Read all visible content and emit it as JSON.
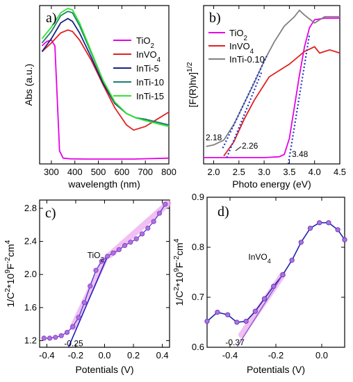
{
  "chart_data": [
    {
      "panel": "a)",
      "type": "line",
      "xlabel": "wavelength (nm)",
      "ylabel": "Abs (a.u.)",
      "xlim": [
        250,
        800
      ],
      "ylim": [
        0,
        1.1
      ],
      "xticks": [
        "300",
        "400",
        "500",
        "600",
        "700",
        "800"
      ],
      "yticks_shown": false,
      "legend": "top-right",
      "series": [
        {
          "name": "TiO2",
          "color": "#e600e6",
          "x": [
            260,
            280,
            300,
            315,
            325,
            335,
            350,
            380,
            450,
            550,
            650,
            800
          ],
          "y": [
            0.82,
            0.85,
            0.86,
            0.82,
            0.45,
            0.09,
            0.04,
            0.035,
            0.034,
            0.034,
            0.034,
            0.04
          ]
        },
        {
          "name": "InVO4",
          "color": "#e02020",
          "x": [
            260,
            300,
            340,
            370,
            390,
            420,
            470,
            520,
            570,
            620,
            650,
            700,
            750,
            800
          ],
          "y": [
            0.78,
            0.84,
            0.91,
            0.93,
            0.92,
            0.86,
            0.72,
            0.55,
            0.39,
            0.27,
            0.235,
            0.26,
            0.31,
            0.36
          ]
        },
        {
          "name": "InTi-5",
          "color": "#1a237e",
          "x": [
            260,
            300,
            340,
            370,
            390,
            420,
            470,
            520,
            570,
            620,
            660,
            700,
            750,
            800
          ],
          "y": [
            0.78,
            0.87,
            0.98,
            1.01,
            0.99,
            0.91,
            0.74,
            0.56,
            0.42,
            0.35,
            0.32,
            0.31,
            0.29,
            0.27
          ]
        },
        {
          "name": "InTi-10",
          "color": "#1a7f6e",
          "x": [
            260,
            300,
            340,
            370,
            390,
            420,
            470,
            520,
            570,
            620,
            660,
            700,
            750,
            800
          ],
          "y": [
            0.84,
            0.92,
            1.03,
            1.06,
            1.05,
            0.96,
            0.77,
            0.58,
            0.43,
            0.35,
            0.32,
            0.31,
            0.29,
            0.27
          ]
        },
        {
          "name": "InTi-15",
          "color": "#2ee62e",
          "x": [
            260,
            300,
            340,
            370,
            390,
            420,
            470,
            520,
            570,
            620,
            660,
            700,
            750,
            800
          ],
          "y": [
            0.87,
            0.95,
            1.05,
            1.08,
            1.07,
            0.98,
            0.78,
            0.58,
            0.43,
            0.35,
            0.32,
            0.3,
            0.28,
            0.26
          ]
        }
      ]
    },
    {
      "panel": "b)",
      "type": "line",
      "xlabel": "Photo energy (eV)",
      "ylabel": "[F(R)hv]1/2",
      "xlim": [
        1.8,
        4.5
      ],
      "ylim": [
        0,
        1.0
      ],
      "xticks": [
        "2.0",
        "2.5",
        "3.0",
        "3.5",
        "4.0",
        "4.5"
      ],
      "yticks_shown": false,
      "legend": "top-left",
      "series": [
        {
          "name": "TiO2",
          "color": "#e600e6",
          "x": [
            1.8,
            3.0,
            3.3,
            3.4,
            3.5,
            3.6,
            3.7,
            3.8,
            3.9,
            4.0,
            4.2,
            4.5
          ],
          "y": [
            0.04,
            0.04,
            0.045,
            0.06,
            0.16,
            0.36,
            0.56,
            0.74,
            0.86,
            0.91,
            0.92,
            0.92
          ]
        },
        {
          "name": "InVO4",
          "color": "#e02020",
          "x": [
            2.2,
            2.4,
            2.6,
            2.8,
            3.0,
            3.1,
            3.3,
            3.5,
            3.8,
            4.0,
            4.1,
            4.3,
            4.5
          ],
          "y": [
            0.05,
            0.14,
            0.28,
            0.4,
            0.5,
            0.55,
            0.59,
            0.63,
            0.71,
            0.74,
            0.7,
            0.72,
            0.7
          ]
        },
        {
          "name": "InTi-0.10",
          "color": "#808080",
          "x": [
            1.85,
            2.0,
            2.2,
            2.4,
            2.6,
            2.8,
            3.0,
            3.2,
            3.4,
            3.6,
            3.7,
            3.8,
            4.0,
            4.2,
            4.5
          ],
          "y": [
            0.11,
            0.12,
            0.15,
            0.25,
            0.38,
            0.51,
            0.65,
            0.77,
            0.87,
            0.93,
            0.97,
            0.94,
            0.89,
            0.93,
            0.93
          ]
        }
      ],
      "annotations": [
        {
          "text": "2.18",
          "x": 2.18,
          "y": 0.1
        },
        {
          "text": "2.26",
          "x": 2.26,
          "y": 0.04
        },
        {
          "text": "3.48",
          "x": 3.48,
          "y": 0.0
        }
      ]
    },
    {
      "panel": "c)",
      "type": "scatter",
      "xlabel": "Potentials (V)",
      "ylabel": "1/C2*109F-2cm4",
      "xlim": [
        -0.45,
        0.45
      ],
      "ylim": [
        1.12,
        2.9
      ],
      "xticks": [
        "-0.4",
        "-0.2",
        "0.0",
        "0.2",
        "0.4"
      ],
      "yticks": [
        "1.2",
        "1.6",
        "2.0",
        "2.4",
        "2.8"
      ],
      "series": [
        {
          "name": "TiO2",
          "color": "#3333cc",
          "x": [
            -0.42,
            -0.38,
            -0.34,
            -0.3,
            -0.26,
            -0.22,
            -0.18,
            -0.14,
            -0.1,
            -0.06,
            -0.02,
            0.02,
            0.06,
            0.1,
            0.14,
            0.18,
            0.22,
            0.26,
            0.3,
            0.34,
            0.38,
            0.42
          ],
          "y": [
            1.23,
            1.23,
            1.24,
            1.26,
            1.3,
            1.37,
            1.48,
            1.66,
            1.86,
            2.05,
            2.16,
            2.22,
            2.26,
            2.3,
            2.35,
            2.39,
            2.43,
            2.49,
            2.56,
            2.64,
            2.74,
            2.85
          ]
        }
      ],
      "annotations": [
        {
          "text": "-0.25",
          "x": -0.25,
          "y": 1.15
        },
        {
          "text": "TiO2",
          "x": -0.07,
          "y": 2.22
        }
      ]
    },
    {
      "panel": "d)",
      "type": "scatter",
      "xlabel": "Potentials (V)",
      "ylabel": "1/C2*109F-2cm4",
      "xlim": [
        -0.5,
        0.1
      ],
      "ylim": [
        0.6,
        0.9
      ],
      "xticks": [
        "-0.4",
        "-0.2",
        "0.0"
      ],
      "yticks": [
        "0.6",
        "0.7",
        "0.8",
        "0.9"
      ],
      "series": [
        {
          "name": "InVO4",
          "color": "#3333cc",
          "x": [
            -0.5,
            -0.455,
            -0.41,
            -0.37,
            -0.33,
            -0.29,
            -0.25,
            -0.21,
            -0.17,
            -0.13,
            -0.09,
            -0.05,
            -0.01,
            0.03,
            0.07,
            0.1
          ],
          "y": [
            0.652,
            0.67,
            0.665,
            0.65,
            0.652,
            0.672,
            0.697,
            0.722,
            0.745,
            0.774,
            0.81,
            0.838,
            0.849,
            0.849,
            0.835,
            0.815
          ]
        }
      ],
      "annotations": [
        {
          "text": "-0.37",
          "x": -0.37,
          "y": 0.61
        },
        {
          "text": "InVO4",
          "x": -0.29,
          "y": 0.8
        }
      ]
    }
  ]
}
